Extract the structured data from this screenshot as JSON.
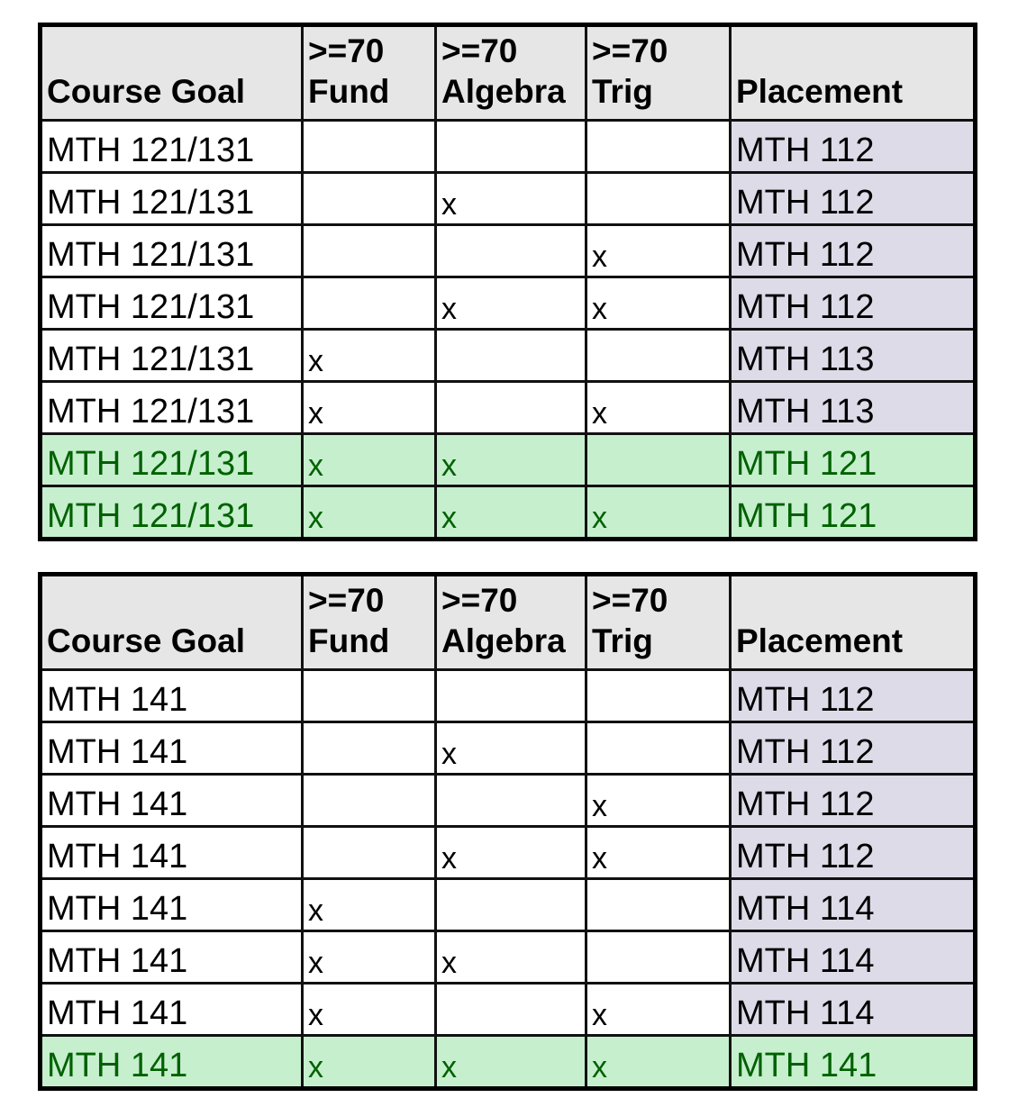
{
  "colors": {
    "header_bg": "#e7e6e6",
    "placement_bg": "#dddbe8",
    "highlight_bg": "#c6efce",
    "highlight_text": "#006100"
  },
  "tables": [
    {
      "headers": [
        "Course Goal",
        ">=70 Fund",
        ">=70 Algebra",
        ">=70 Trig",
        "Placement"
      ],
      "rows": [
        {
          "highlight": false,
          "cells": [
            "MTH 121/131",
            "",
            "",
            "",
            "MTH 112"
          ]
        },
        {
          "highlight": false,
          "cells": [
            "MTH 121/131",
            "",
            "x",
            "",
            "MTH 112"
          ]
        },
        {
          "highlight": false,
          "cells": [
            "MTH 121/131",
            "",
            "",
            "x",
            "MTH 112"
          ]
        },
        {
          "highlight": false,
          "cells": [
            "MTH 121/131",
            "",
            "x",
            "x",
            "MTH 112"
          ]
        },
        {
          "highlight": false,
          "cells": [
            "MTH 121/131",
            "x",
            "",
            "",
            "MTH 113"
          ]
        },
        {
          "highlight": false,
          "cells": [
            "MTH 121/131",
            "x",
            "",
            "x",
            "MTH 113"
          ]
        },
        {
          "highlight": true,
          "cells": [
            "MTH 121/131",
            "x",
            "x",
            "",
            "MTH 121"
          ]
        },
        {
          "highlight": true,
          "cells": [
            "MTH 121/131",
            "x",
            "x",
            "x",
            "MTH 121"
          ]
        }
      ]
    },
    {
      "headers": [
        "Course Goal",
        ">=70 Fund",
        ">=70 Algebra",
        ">=70 Trig",
        "Placement"
      ],
      "rows": [
        {
          "highlight": false,
          "cells": [
            "MTH 141",
            "",
            "",
            "",
            "MTH 112"
          ]
        },
        {
          "highlight": false,
          "cells": [
            "MTH 141",
            "",
            "x",
            "",
            "MTH 112"
          ]
        },
        {
          "highlight": false,
          "cells": [
            "MTH 141",
            "",
            "",
            "x",
            "MTH 112"
          ]
        },
        {
          "highlight": false,
          "cells": [
            "MTH 141",
            "",
            "x",
            "x",
            "MTH 112"
          ]
        },
        {
          "highlight": false,
          "cells": [
            "MTH 141",
            "x",
            "",
            "",
            "MTH 114"
          ]
        },
        {
          "highlight": false,
          "cells": [
            "MTH 141",
            "x",
            "x",
            "",
            "MTH 114"
          ]
        },
        {
          "highlight": false,
          "cells": [
            "MTH 141",
            "x",
            "",
            "x",
            "MTH 114"
          ]
        },
        {
          "highlight": true,
          "cells": [
            "MTH 141",
            "x",
            "x",
            "x",
            "MTH 141"
          ]
        }
      ]
    }
  ]
}
